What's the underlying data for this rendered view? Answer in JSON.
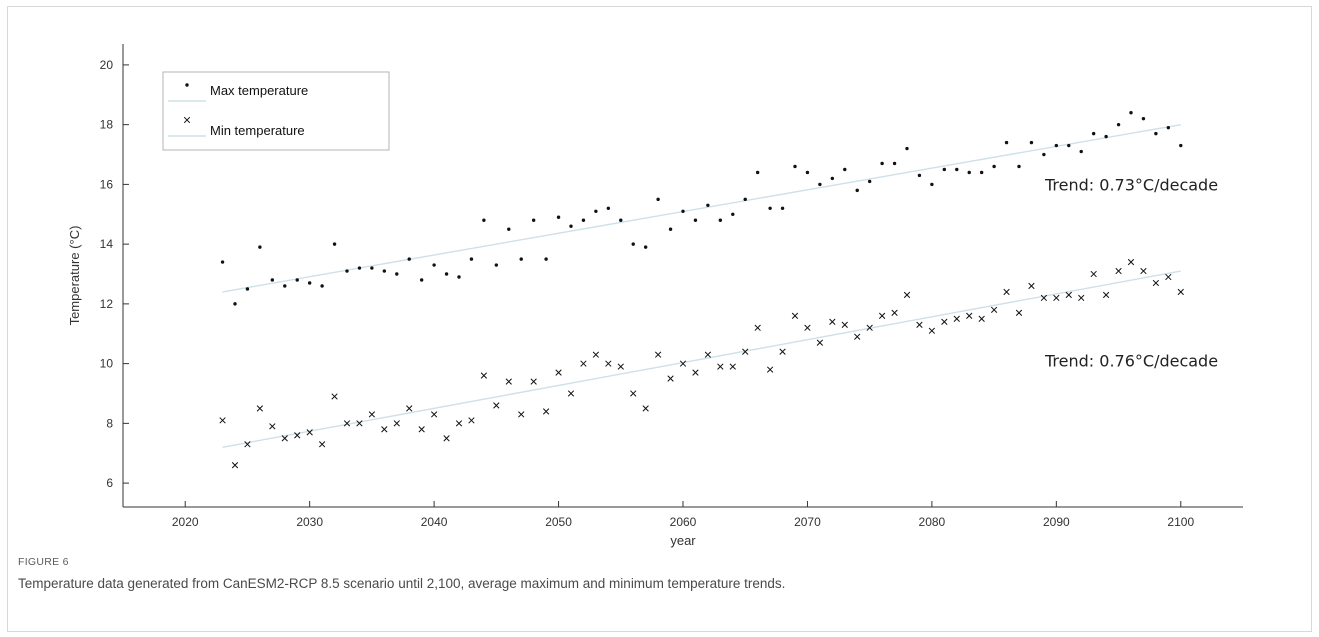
{
  "figure": {
    "label": "FIGURE 6",
    "caption": "Temperature data generated from CanESM2-RCP 8.5 scenario until 2,100, average maximum and minimum temperature trends."
  },
  "chart_data": {
    "type": "scatter",
    "xlabel": "year",
    "ylabel": "Temperature (°C)",
    "xlim": [
      2015,
      2105
    ],
    "ylim": [
      5.2,
      20.7
    ],
    "xticks": [
      2020,
      2030,
      2040,
      2050,
      2060,
      2070,
      2080,
      2090,
      2100
    ],
    "yticks": [
      6,
      8,
      10,
      12,
      14,
      16,
      18,
      20
    ],
    "grid": false,
    "legend": {
      "position": "top-left",
      "entries": [
        "Max temperature",
        "Min temperature"
      ]
    },
    "annotations": [
      "Trend: 0.73°C/decade",
      "Trend: 0.76°C/decade"
    ],
    "colors": {
      "points": "#111111",
      "trendline": "#cfe0e8",
      "axis": "#333333"
    },
    "series": [
      {
        "name": "Max temperature",
        "marker": "dot",
        "x": [
          2023,
          2024,
          2025,
          2026,
          2027,
          2028,
          2029,
          2030,
          2031,
          2032,
          2033,
          2034,
          2035,
          2036,
          2037,
          2038,
          2039,
          2040,
          2041,
          2042,
          2043,
          2044,
          2045,
          2046,
          2047,
          2048,
          2049,
          2050,
          2051,
          2052,
          2053,
          2054,
          2055,
          2056,
          2057,
          2058,
          2059,
          2060,
          2061,
          2062,
          2063,
          2064,
          2065,
          2066,
          2067,
          2068,
          2069,
          2070,
          2071,
          2072,
          2073,
          2074,
          2075,
          2076,
          2077,
          2078,
          2079,
          2080,
          2081,
          2082,
          2083,
          2084,
          2085,
          2086,
          2087,
          2088,
          2089,
          2090,
          2091,
          2092,
          2093,
          2094,
          2095,
          2096,
          2097,
          2098,
          2099,
          2100
        ],
        "y": [
          13.4,
          12.0,
          12.5,
          13.9,
          12.8,
          12.6,
          12.8,
          12.7,
          12.6,
          14.0,
          13.1,
          13.2,
          13.2,
          13.1,
          13.0,
          13.5,
          12.8,
          13.3,
          13.0,
          12.9,
          13.5,
          14.8,
          13.3,
          14.5,
          13.5,
          14.8,
          13.5,
          14.9,
          14.6,
          14.8,
          15.1,
          15.2,
          14.8,
          14.0,
          13.9,
          15.5,
          14.5,
          15.1,
          14.8,
          15.3,
          14.8,
          15.0,
          15.5,
          16.4,
          15.2,
          15.2,
          16.6,
          16.4,
          16.0,
          16.2,
          16.5,
          15.8,
          16.1,
          16.7,
          16.7,
          17.2,
          16.3,
          16.0,
          16.5,
          16.5,
          16.4,
          16.4,
          16.6,
          17.4,
          16.6,
          17.4,
          17.0,
          17.3,
          17.3,
          17.1,
          17.7,
          17.6,
          18.0,
          18.4,
          18.2,
          17.7,
          17.9,
          17.3
        ]
      },
      {
        "name": "Min temperature",
        "marker": "x",
        "x": [
          2023,
          2024,
          2025,
          2026,
          2027,
          2028,
          2029,
          2030,
          2031,
          2032,
          2033,
          2034,
          2035,
          2036,
          2037,
          2038,
          2039,
          2040,
          2041,
          2042,
          2043,
          2044,
          2045,
          2046,
          2047,
          2048,
          2049,
          2050,
          2051,
          2052,
          2053,
          2054,
          2055,
          2056,
          2057,
          2058,
          2059,
          2060,
          2061,
          2062,
          2063,
          2064,
          2065,
          2066,
          2067,
          2068,
          2069,
          2070,
          2071,
          2072,
          2073,
          2074,
          2075,
          2076,
          2077,
          2078,
          2079,
          2080,
          2081,
          2082,
          2083,
          2084,
          2085,
          2086,
          2087,
          2088,
          2089,
          2090,
          2091,
          2092,
          2093,
          2094,
          2095,
          2096,
          2097,
          2098,
          2099,
          2100
        ],
        "y": [
          8.1,
          6.6,
          7.3,
          8.5,
          7.9,
          7.5,
          7.6,
          7.7,
          7.3,
          8.9,
          8.0,
          8.0,
          8.3,
          7.8,
          8.0,
          8.5,
          7.8,
          8.3,
          7.5,
          8.0,
          8.1,
          9.6,
          8.6,
          9.4,
          8.3,
          9.4,
          8.4,
          9.7,
          9.0,
          10.0,
          10.3,
          10.0,
          9.9,
          9.0,
          8.5,
          10.3,
          9.5,
          10.0,
          9.7,
          10.3,
          9.9,
          9.9,
          10.4,
          11.2,
          9.8,
          10.4,
          11.6,
          11.2,
          10.7,
          11.4,
          11.3,
          10.9,
          11.2,
          11.6,
          11.7,
          12.3,
          11.3,
          11.1,
          11.4,
          11.5,
          11.6,
          11.5,
          11.8,
          12.4,
          11.7,
          12.6,
          12.2,
          12.2,
          12.3,
          12.2,
          13.0,
          12.3,
          13.1,
          13.4,
          13.1,
          12.7,
          12.9,
          12.4
        ]
      }
    ],
    "trendlines": [
      {
        "series": "Max temperature",
        "x": [
          2023,
          2100
        ],
        "y": [
          12.4,
          18.0
        ]
      },
      {
        "series": "Min temperature",
        "x": [
          2023,
          2100
        ],
        "y": [
          7.2,
          13.1
        ]
      }
    ]
  }
}
